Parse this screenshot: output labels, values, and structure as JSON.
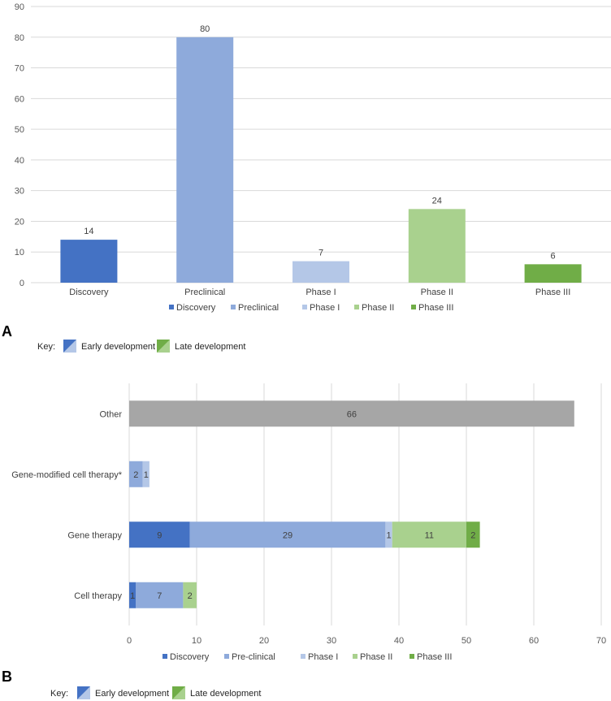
{
  "chart_data": [
    {
      "type": "bar",
      "panel": "A",
      "categories": [
        "Discovery",
        "Preclinical",
        "Phase I",
        "Phase II",
        "Phase III"
      ],
      "values": [
        14,
        80,
        7,
        24,
        6
      ],
      "colors": [
        "#4472c4",
        "#8eaadb",
        "#b4c7e7",
        "#a9d18e",
        "#70ad47"
      ],
      "yticks": [
        "0",
        "10",
        "20",
        "30",
        "40",
        "50",
        "60",
        "70",
        "80",
        "90"
      ],
      "ylim": [
        0,
        90
      ],
      "legend": [
        "Discovery",
        "Preclinical",
        "Phase I",
        "Phase II",
        "Phase III"
      ],
      "legend_position": "bottom",
      "grid": true,
      "key": {
        "label": "Key:",
        "early": "Early development",
        "late": "Late development"
      }
    },
    {
      "type": "bar",
      "orientation": "horizontal",
      "stacked": true,
      "panel": "B",
      "categories": [
        "Other",
        "Gene-modified cell therapy*",
        "Gene therapy",
        "Cell therapy"
      ],
      "series": [
        {
          "name": "Discovery",
          "color": "#4472c4",
          "values": [
            null,
            null,
            9,
            1
          ]
        },
        {
          "name": "Pre-clinical",
          "color": "#8eaadb",
          "values": [
            null,
            2,
            29,
            7
          ]
        },
        {
          "name": "Phase I",
          "color": "#b4c7e7",
          "values": [
            null,
            1,
            1,
            null
          ]
        },
        {
          "name": "Phase II",
          "color": "#a9d18e",
          "values": [
            null,
            null,
            11,
            2
          ]
        },
        {
          "name": "Phase III",
          "color": "#70ad47",
          "values": [
            null,
            null,
            2,
            null
          ]
        }
      ],
      "other": {
        "value": 66,
        "color": "#a6a6a6"
      },
      "xticks": [
        "0",
        "10",
        "20",
        "30",
        "40",
        "50",
        "60",
        "70"
      ],
      "xlim": [
        0,
        70
      ],
      "legend": [
        "Discovery",
        "Pre-clinical",
        "Phase I",
        "Phase II",
        "Phase III"
      ],
      "legend_position": "bottom",
      "grid": true,
      "key": {
        "label": "Key:",
        "early": "Early development",
        "late": "Late development"
      }
    }
  ]
}
